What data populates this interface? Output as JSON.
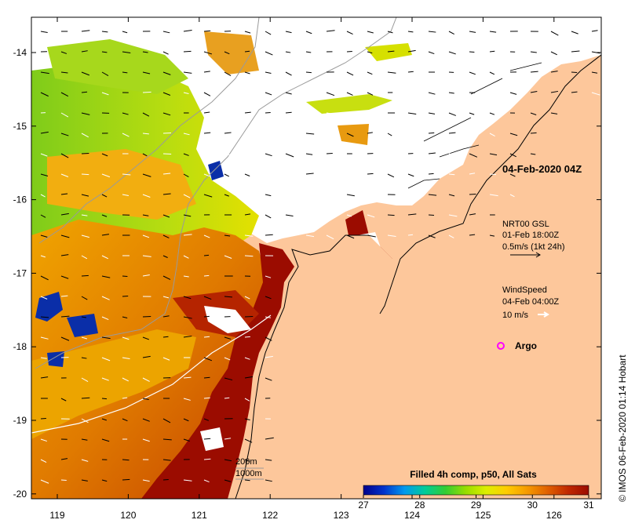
{
  "map": {
    "timestamp_label": "04-Feb-2020 04Z",
    "lon_ticks": [
      "119",
      "120",
      "121",
      "122",
      "123",
      "124",
      "125",
      "126"
    ],
    "lat_ticks": [
      "-14",
      "-15",
      "-16",
      "-17",
      "-18",
      "-19",
      "-20"
    ],
    "colors": {
      "land": "#fdc79b",
      "cloud": "#ffffff",
      "coast": "#000000",
      "bathymetry": "#9a9a9a"
    }
  },
  "current_legend": {
    "line1": "NRT00 GSL",
    "line2": "01-Feb 18:00Z",
    "line3": "0.5m/s (1kt 24h)"
  },
  "wind_legend": {
    "line1": "WindSpeed",
    "line2": "04-Feb 04:00Z",
    "line3": "10 m/s"
  },
  "argo_legend": {
    "label": "Argo",
    "color": "#ff00ff"
  },
  "depth_legend": {
    "label_200": "200m",
    "label_1000": "1000m"
  },
  "colorbar": {
    "title": "Filled 4h comp, p50, All Sats",
    "ticks": [
      "27",
      "28",
      "29",
      "30",
      "31"
    ],
    "min": 27,
    "max": 31,
    "stops": [
      "#00008b",
      "#0033cc",
      "#0099ee",
      "#00cc99",
      "#33cc33",
      "#99dd00",
      "#ddee00",
      "#ffcc00",
      "#f59a00",
      "#e06000",
      "#c02800",
      "#9b0c00"
    ]
  },
  "credit": "© IMOS 06-Feb-2020 01:14 Hobart"
}
